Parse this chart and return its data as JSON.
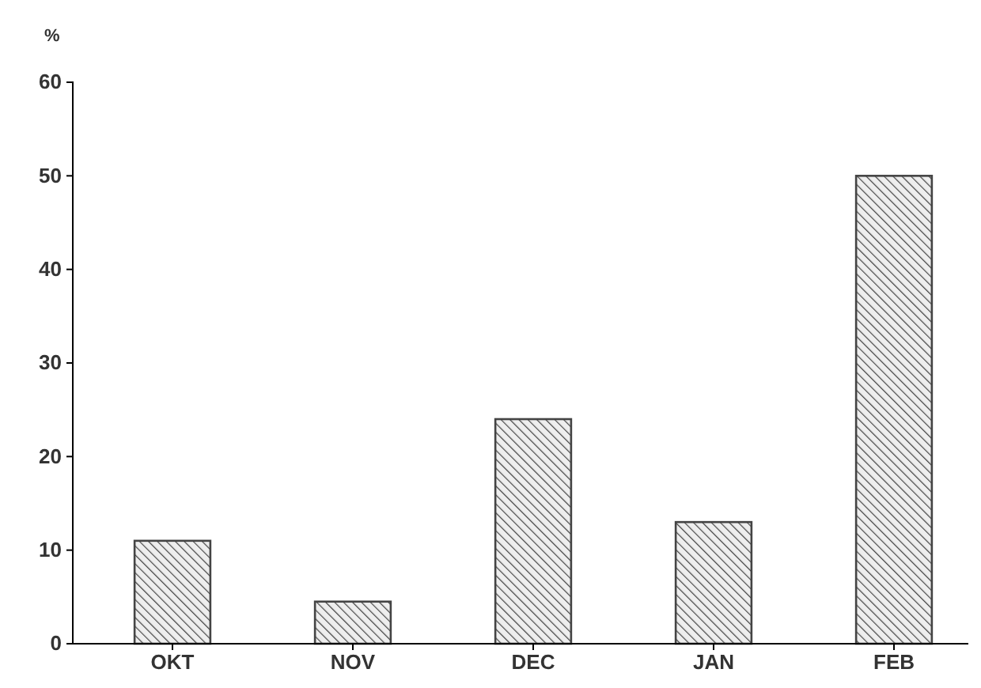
{
  "chart_data": {
    "type": "bar",
    "ylabel": "%",
    "categories": [
      "OKT",
      "NOV",
      "DEC",
      "JAN",
      "FEB"
    ],
    "values": [
      11,
      4.5,
      24,
      13,
      50
    ],
    "color": "#444444",
    "ylim": [
      0,
      60
    ],
    "yticks": [
      0,
      10,
      20,
      30,
      40,
      50,
      60
    ],
    "grid": false
  }
}
